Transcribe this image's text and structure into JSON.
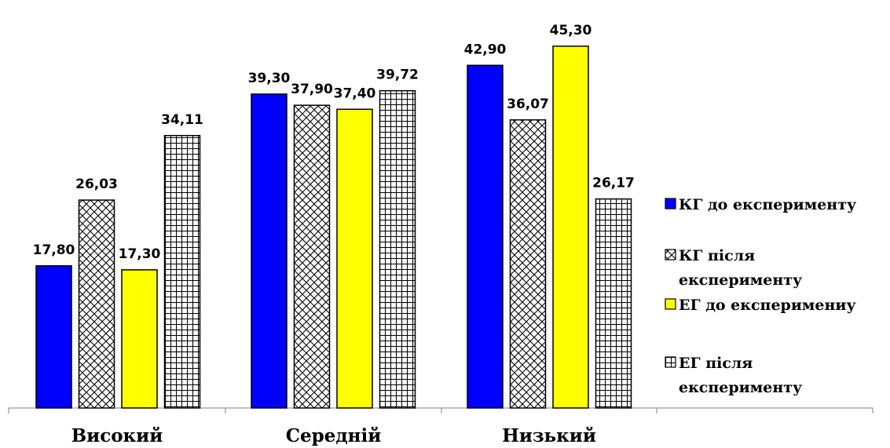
{
  "chart_data": {
    "type": "bar",
    "title": "",
    "xlabel": "",
    "ylabel": "",
    "categories": [
      "Високий",
      "Середній",
      "Низький"
    ],
    "ylim": [
      0,
      50
    ],
    "grid": false,
    "legend_position": "right",
    "series": [
      {
        "name_lines": [
          "КГ до експерименту"
        ],
        "values": [
          17.8,
          39.3,
          42.9
        ],
        "labels": [
          "17,80",
          "39,30",
          "42,90"
        ],
        "fill": "#0000ff",
        "pattern": "solid"
      },
      {
        "name_lines": [
          "КГ після",
          "експерименту"
        ],
        "values": [
          26.03,
          37.9,
          36.07
        ],
        "labels": [
          "26,03",
          "37,90",
          "36,07"
        ],
        "fill": "#ffffff",
        "pattern": "diagonal-cross"
      },
      {
        "name_lines": [
          "ЕГ до експеримениу"
        ],
        "values": [
          17.3,
          37.4,
          45.3
        ],
        "labels": [
          "17,30",
          "37,40",
          "45,30"
        ],
        "fill": "#ffff00",
        "pattern": "solid"
      },
      {
        "name_lines": [
          "ЕГ після",
          "експерименту"
        ],
        "values": [
          34.11,
          39.72,
          26.17
        ],
        "labels": [
          "34,11",
          "39,72",
          "26,17"
        ],
        "fill": "#ffffff",
        "pattern": "grid"
      }
    ]
  }
}
